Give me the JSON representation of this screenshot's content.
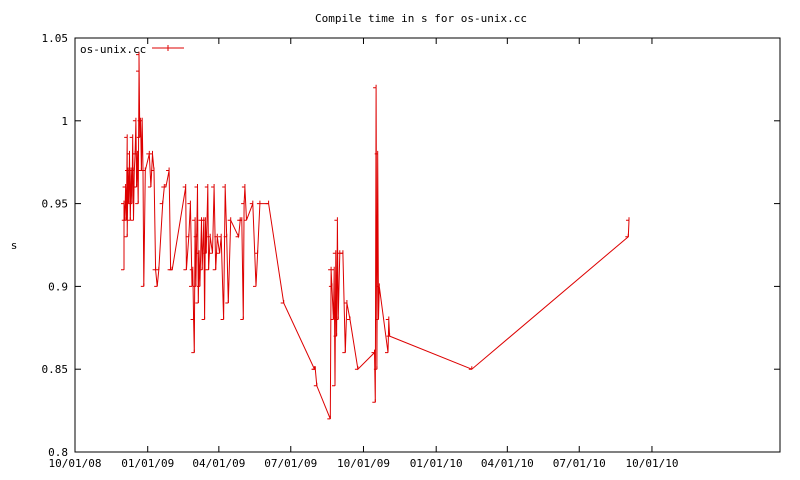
{
  "chart_data": {
    "type": "line",
    "title": "Compile time in s for os-unix.cc",
    "xlabel": "",
    "ylabel": "s",
    "ylim": [
      0.8,
      1.05
    ],
    "xlim": [
      "2008-10-01",
      "2011-03-12"
    ],
    "grid": false,
    "legend_position": "top-left",
    "colors": {
      "series": "#dd0000",
      "axes": "#000000"
    },
    "x_ticks": [
      "10/01/08",
      "01/01/09",
      "04/01/09",
      "07/01/09",
      "10/01/09",
      "01/01/10",
      "04/01/10",
      "07/01/10",
      "10/01/10"
    ],
    "y_ticks": [
      "0.8",
      "0.85",
      "0.9",
      "0.95",
      "1",
      "1.05"
    ],
    "series": [
      {
        "name": "os-unix.cc",
        "points": [
          [
            "2008-12-02",
            0.91
          ],
          [
            "2008-12-02",
            0.95
          ],
          [
            "2008-12-03",
            0.94
          ],
          [
            "2008-12-04",
            0.96
          ],
          [
            "2008-12-05",
            0.94
          ],
          [
            "2008-12-06",
            0.99
          ],
          [
            "2008-12-06",
            0.93
          ],
          [
            "2008-12-07",
            0.97
          ],
          [
            "2008-12-08",
            0.95
          ],
          [
            "2008-12-09",
            0.98
          ],
          [
            "2008-12-10",
            0.94
          ],
          [
            "2008-12-11",
            0.97
          ],
          [
            "2008-12-12",
            0.95
          ],
          [
            "2008-12-13",
            0.99
          ],
          [
            "2008-12-14",
            0.94
          ],
          [
            "2008-12-15",
            0.97
          ],
          [
            "2008-12-16",
            0.98
          ],
          [
            "2008-12-17",
            1.0
          ],
          [
            "2008-12-18",
            0.96
          ],
          [
            "2008-12-19",
            0.98
          ],
          [
            "2008-12-20",
            0.95
          ],
          [
            "2008-12-21",
            1.03
          ],
          [
            "2008-12-21",
            1.04
          ],
          [
            "2008-12-22",
            0.99
          ],
          [
            "2008-12-23",
            1.0
          ],
          [
            "2008-12-24",
            0.97
          ],
          [
            "2008-12-25",
            1.0
          ],
          [
            "2008-12-26",
            0.97
          ],
          [
            "2008-12-27",
            0.9
          ],
          [
            "2008-12-29",
            0.97
          ],
          [
            "2009-01-03",
            0.98
          ],
          [
            "2009-01-05",
            0.96
          ],
          [
            "2009-01-07",
            0.98
          ],
          [
            "2009-01-09",
            0.97
          ],
          [
            "2009-01-11",
            0.91
          ],
          [
            "2009-01-13",
            0.9
          ],
          [
            "2009-01-15",
            0.91
          ],
          [
            "2009-01-20",
            0.95
          ],
          [
            "2009-01-22",
            0.96
          ],
          [
            "2009-01-24",
            0.96
          ],
          [
            "2009-01-28",
            0.97
          ],
          [
            "2009-01-30",
            0.91
          ],
          [
            "2009-02-01",
            0.91
          ],
          [
            "2009-02-18",
            0.96
          ],
          [
            "2009-02-19",
            0.91
          ],
          [
            "2009-02-22",
            0.93
          ],
          [
            "2009-02-24",
            0.95
          ],
          [
            "2009-02-26",
            0.9
          ],
          [
            "2009-02-27",
            0.91
          ],
          [
            "2009-02-28",
            0.88
          ],
          [
            "2009-03-01",
            0.86
          ],
          [
            "2009-03-02",
            0.94
          ],
          [
            "2009-03-03",
            0.9
          ],
          [
            "2009-03-04",
            0.93
          ],
          [
            "2009-03-05",
            0.96
          ],
          [
            "2009-03-06",
            0.89
          ],
          [
            "2009-03-07",
            0.92
          ],
          [
            "2009-03-08",
            0.9
          ],
          [
            "2009-03-10",
            0.94
          ],
          [
            "2009-03-11",
            0.91
          ],
          [
            "2009-03-13",
            0.94
          ],
          [
            "2009-03-14",
            0.88
          ],
          [
            "2009-03-15",
            0.94
          ],
          [
            "2009-03-16",
            0.92
          ],
          [
            "2009-03-18",
            0.96
          ],
          [
            "2009-03-19",
            0.91
          ],
          [
            "2009-03-21",
            0.93
          ],
          [
            "2009-03-24",
            0.92
          ],
          [
            "2009-03-26",
            0.96
          ],
          [
            "2009-03-28",
            0.91
          ],
          [
            "2009-03-30",
            0.93
          ],
          [
            "2009-04-02",
            0.92
          ],
          [
            "2009-04-04",
            0.93
          ],
          [
            "2009-04-07",
            0.88
          ],
          [
            "2009-04-09",
            0.96
          ],
          [
            "2009-04-11",
            0.93
          ],
          [
            "2009-04-13",
            0.89
          ],
          [
            "2009-04-16",
            0.94
          ],
          [
            "2009-04-26",
            0.93
          ],
          [
            "2009-04-28",
            0.94
          ],
          [
            "2009-04-30",
            0.94
          ],
          [
            "2009-05-02",
            0.88
          ],
          [
            "2009-05-03",
            0.95
          ],
          [
            "2009-05-04",
            0.96
          ],
          [
            "2009-05-06",
            0.94
          ],
          [
            "2009-05-14",
            0.95
          ],
          [
            "2009-05-18",
            0.9
          ],
          [
            "2009-05-20",
            0.92
          ],
          [
            "2009-05-23",
            0.95
          ],
          [
            "2009-06-03",
            0.95
          ],
          [
            "2009-06-22",
            0.89
          ],
          [
            "2009-07-31",
            0.85
          ],
          [
            "2009-08-01",
            0.85
          ],
          [
            "2009-08-03",
            0.84
          ],
          [
            "2009-08-20",
            0.82
          ],
          [
            "2009-08-21",
            0.91
          ],
          [
            "2009-08-22",
            0.9
          ],
          [
            "2009-08-24",
            0.88
          ],
          [
            "2009-08-25",
            0.91
          ],
          [
            "2009-08-26",
            0.84
          ],
          [
            "2009-08-27",
            0.92
          ],
          [
            "2009-08-28",
            0.87
          ],
          [
            "2009-08-29",
            0.94
          ],
          [
            "2009-08-30",
            0.88
          ],
          [
            "2009-09-01",
            0.92
          ],
          [
            "2009-09-05",
            0.92
          ],
          [
            "2009-09-08",
            0.86
          ],
          [
            "2009-09-10",
            0.89
          ],
          [
            "2009-09-14",
            0.88
          ],
          [
            "2009-09-24",
            0.85
          ],
          [
            "2009-10-15",
            0.86
          ],
          [
            "2009-10-16",
            0.83
          ],
          [
            "2009-10-17",
            1.02
          ],
          [
            "2009-10-18",
            0.85
          ],
          [
            "2009-10-19",
            0.98
          ],
          [
            "2009-10-20",
            0.88
          ],
          [
            "2009-10-21",
            0.9
          ],
          [
            "2009-11-01",
            0.86
          ],
          [
            "2009-11-02",
            0.88
          ],
          [
            "2009-11-03",
            0.87
          ],
          [
            "2010-02-15",
            0.85
          ],
          [
            "2010-09-01",
            0.93
          ],
          [
            "2010-09-02",
            0.94
          ]
        ]
      }
    ]
  }
}
